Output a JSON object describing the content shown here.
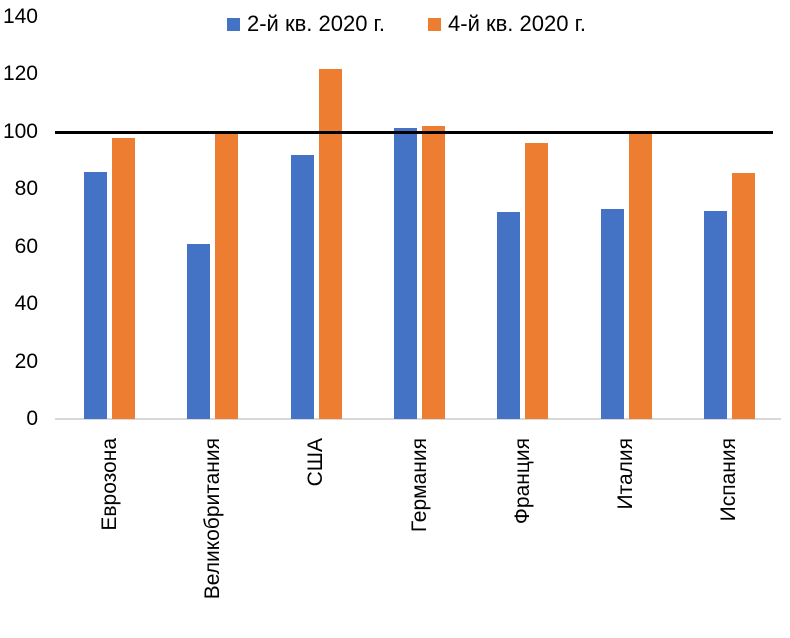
{
  "chart_data": {
    "type": "bar",
    "title": "",
    "categories": [
      "Еврозона",
      "Великобритания",
      "США",
      "Германия",
      "Франция",
      "Италия",
      "Испания"
    ],
    "series": [
      {
        "name": "2-й кв. 2020 г.",
        "color": "#4472C4",
        "values": [
          86,
          61,
          92,
          101.5,
          72,
          73,
          72.5
        ]
      },
      {
        "name": "4-й кв. 2020 г.",
        "color": "#ED7D31",
        "values": [
          98,
          100,
          122,
          102,
          96,
          100,
          85.5
        ]
      }
    ],
    "xlabel": "",
    "ylabel": "",
    "ylim": [
      0,
      140
    ],
    "yticks": [
      0,
      20,
      40,
      60,
      80,
      100,
      120,
      140
    ],
    "reference_line": {
      "value": 100,
      "color": "#000000"
    },
    "axis_line_color": "#D9D9D9",
    "legend_position": "top",
    "grid": false
  }
}
